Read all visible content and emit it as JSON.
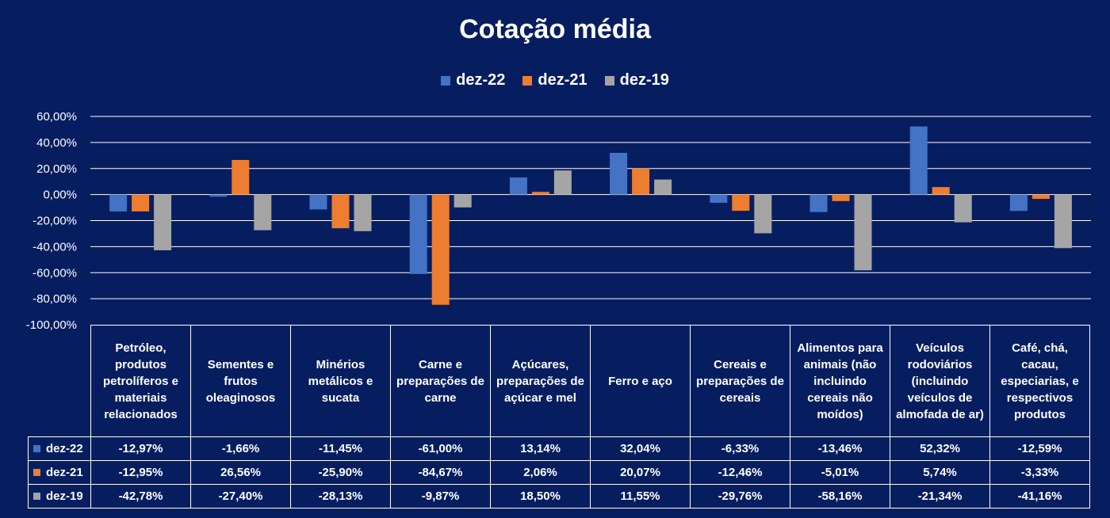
{
  "chart_data": {
    "type": "bar",
    "title": "Cotação média",
    "categories": [
      "Petróleo, produtos petrolíferos e materiais relacionados",
      "Sementes e frutos oleaginosos",
      "Minérios metálicos e sucata",
      "Carne e preparações de carne",
      "Açúcares, preparações de açúcar e mel",
      "Ferro e aço",
      "Cereais e preparações de cereais",
      "Alimentos para animais (não incluindo cereais não moídos)",
      "Veículos rodoviários (incluindo veículos de almofada de ar)",
      "Café, chá, cacau, especiarias, e respectivos produtos"
    ],
    "series": [
      {
        "name": "dez-22",
        "color": "#4472c4",
        "values": [
          -12.97,
          -1.66,
          -11.45,
          -61.0,
          13.14,
          32.04,
          -6.33,
          -13.46,
          52.32,
          -12.59
        ],
        "labels": [
          "-12,97%",
          "-1,66%",
          "-11,45%",
          "-61,00%",
          "13,14%",
          "32,04%",
          "-6,33%",
          "-13,46%",
          "52,32%",
          "-12,59%"
        ]
      },
      {
        "name": "dez-21",
        "color": "#ed7d31",
        "values": [
          -12.95,
          26.56,
          -25.9,
          -84.67,
          2.06,
          20.07,
          -12.46,
          -5.01,
          5.74,
          -3.33
        ],
        "labels": [
          "-12,95%",
          "26,56%",
          "-25,90%",
          "-84,67%",
          "2,06%",
          "20,07%",
          "-12,46%",
          "-5,01%",
          "5,74%",
          "-3,33%"
        ]
      },
      {
        "name": "dez-19",
        "color": "#a5a5a5",
        "values": [
          -42.78,
          -27.4,
          -28.13,
          -9.87,
          18.5,
          11.55,
          -29.76,
          -58.16,
          -21.34,
          -41.16
        ],
        "labels": [
          "-42,78%",
          "-27,40%",
          "-28,13%",
          "-9,87%",
          "18,50%",
          "11,55%",
          "-29,76%",
          "-58,16%",
          "-21,34%",
          "-41,16%"
        ]
      }
    ],
    "ylim": [
      -100,
      60
    ],
    "yticks": [
      60,
      40,
      20,
      0,
      -20,
      -40,
      -60,
      -80,
      -100
    ],
    "ytick_labels": [
      "60,00%",
      "40,00%",
      "20,00%",
      "0,00%",
      "-20,00%",
      "-40,00%",
      "-60,00%",
      "-80,00%",
      "-100,00%"
    ],
    "grid": true,
    "legend_position": "top-center",
    "data_table": true
  }
}
